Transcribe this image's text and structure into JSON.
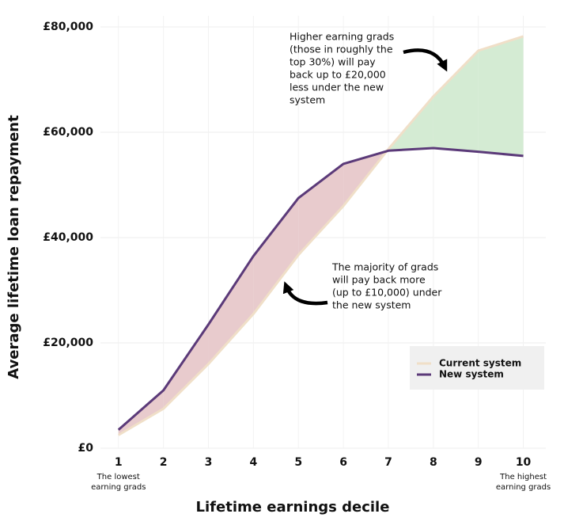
{
  "chart_data": {
    "type": "line",
    "x_label": "Lifetime earnings decile",
    "y_label": "Average lifetime loan repayment",
    "x": [
      1,
      2,
      3,
      4,
      5,
      6,
      7,
      8,
      9,
      10
    ],
    "series": [
      {
        "name": "Current system",
        "color": "#f0dfc8",
        "values": [
          2500,
          7500,
          16000,
          25500,
          36700,
          46000,
          56800,
          66800,
          75500,
          78200
        ]
      },
      {
        "name": "New system",
        "color": "#5b3a79",
        "values": [
          3500,
          11000,
          23500,
          36500,
          47500,
          54000,
          56500,
          57000,
          56300,
          55500
        ]
      }
    ],
    "area_colors": {
      "new_higher": "#e8cbcd",
      "current_higher": "#d4ebd3"
    },
    "xlim": [
      0.6,
      10.5
    ],
    "xticks": [
      1,
      2,
      3,
      4,
      5,
      6,
      7,
      8,
      9,
      10
    ],
    "ylim": [
      0,
      80000
    ],
    "yticks": [
      {
        "value": 0,
        "label": "£0"
      },
      {
        "value": 20000,
        "label": "£20,000"
      },
      {
        "value": 40000,
        "label": "£40,000"
      },
      {
        "value": 60000,
        "label": "£60,000"
      },
      {
        "value": 80000,
        "label": "£80,000"
      }
    ],
    "grid": true,
    "legend": "lower right",
    "x_end_labels": [
      [
        "The lowest",
        "earning grads"
      ],
      [
        "The highest",
        "earning grads"
      ]
    ],
    "annotations": [
      [
        "Higher earning grads",
        "(those in roughly the",
        "top 30%) will pay",
        "back up to £20,000",
        "less under the new",
        "system"
      ],
      [
        "The majority of grads",
        "will pay back more",
        "(up to £10,000) under",
        "the new system"
      ]
    ]
  }
}
